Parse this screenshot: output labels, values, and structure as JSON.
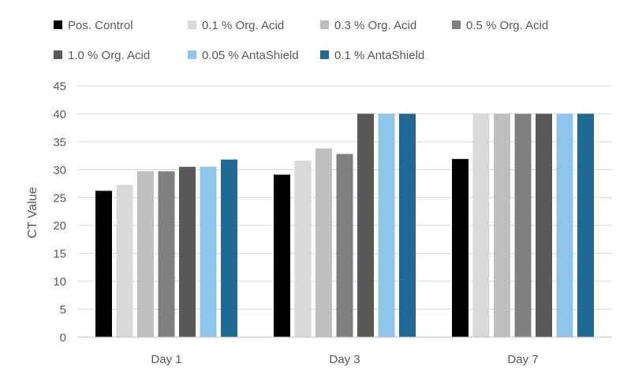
{
  "chart_data": {
    "type": "bar",
    "title": "",
    "xlabel": "",
    "ylabel": "CT Value",
    "ylim": [
      0,
      45
    ],
    "yticks": [
      0,
      5,
      10,
      15,
      20,
      25,
      30,
      35,
      40,
      45
    ],
    "grid": true,
    "legend_position": "top",
    "categories": [
      "Day 1",
      "Day 3",
      "Day 7"
    ],
    "series": [
      {
        "name": "Pos. Control",
        "color": "#000000",
        "values": [
          26.2,
          29.1,
          31.9
        ]
      },
      {
        "name": "0.1 % Org. Acid",
        "color": "#d9d9d9",
        "values": [
          27.3,
          31.6,
          40
        ]
      },
      {
        "name": "0.3 % Org. Acid",
        "color": "#bfbfbf",
        "values": [
          29.7,
          33.8,
          40
        ]
      },
      {
        "name": "0.5 % Org. Acid",
        "color": "#808080",
        "values": [
          29.7,
          32.8,
          40
        ]
      },
      {
        "name": "1.0 % Org. Acid",
        "color": "#595959",
        "values": [
          30.5,
          40,
          40
        ]
      },
      {
        "name": "0.05 % AntaShield",
        "color": "#8ec5ea",
        "values": [
          30.5,
          40,
          40
        ]
      },
      {
        "name": "0.1 % AntaShield",
        "color": "#1f6a94",
        "values": [
          31.8,
          40,
          40
        ]
      }
    ]
  }
}
